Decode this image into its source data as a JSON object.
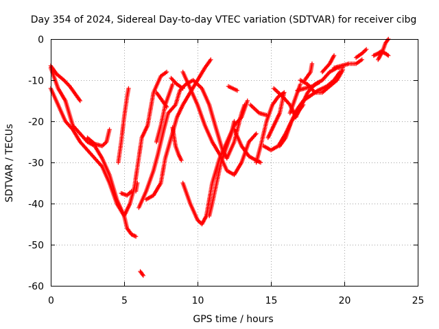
{
  "chart_data": {
    "type": "scatter",
    "title": "Day 354 of 2024, Sidereal Day-to-day VTEC variation (SDTVAR) for receiver cibg",
    "xlabel": "GPS time / hours",
    "ylabel": "SDTVAR / TECUs",
    "xlim": [
      0,
      25
    ],
    "ylim": [
      -60,
      0
    ],
    "xticks": [
      "0",
      "5",
      "10",
      "15",
      "20",
      "25"
    ],
    "yticks": [
      "0",
      "-10",
      "-20",
      "-30",
      "-40",
      "-50",
      "-60"
    ],
    "grid": true,
    "marker": "+",
    "color": "#ff0000",
    "series": [
      {
        "name": "track-1",
        "points": [
          [
            0,
            -7
          ],
          [
            0.5,
            -12
          ],
          [
            1,
            -15
          ],
          [
            1.5,
            -21
          ],
          [
            2,
            -23
          ],
          [
            2.5,
            -25
          ],
          [
            3,
            -26
          ],
          [
            3.5,
            -29
          ],
          [
            4,
            -33
          ],
          [
            4.5,
            -39
          ],
          [
            5,
            -43
          ],
          [
            5.2,
            -46
          ],
          [
            5.5,
            -47.5
          ],
          [
            5.8,
            -48
          ]
        ]
      },
      {
        "name": "track-2",
        "points": [
          [
            0,
            -12
          ],
          [
            0.5,
            -16
          ],
          [
            1,
            -20
          ],
          [
            1.5,
            -22
          ],
          [
            2,
            -25
          ],
          [
            2.5,
            -27
          ],
          [
            3,
            -29
          ],
          [
            3.5,
            -31
          ],
          [
            4,
            -35
          ],
          [
            4.5,
            -40
          ],
          [
            5,
            -43
          ],
          [
            5.4,
            -40
          ],
          [
            5.7,
            -36
          ],
          [
            6.2,
            -24
          ],
          [
            6.6,
            -21
          ],
          [
            7,
            -13
          ],
          [
            7.5,
            -9
          ],
          [
            7.9,
            -8
          ]
        ]
      },
      {
        "name": "track-3",
        "points": [
          [
            0,
            -6.5
          ],
          [
            0.4,
            -8.5
          ],
          [
            0.9,
            -10
          ],
          [
            1.3,
            -11.5
          ],
          [
            1.7,
            -13.5
          ],
          [
            2,
            -15
          ]
        ]
      },
      {
        "name": "track-4",
        "points": [
          [
            2.5,
            -24
          ],
          [
            3,
            -25.5
          ],
          [
            3.5,
            -26
          ],
          [
            3.8,
            -25
          ],
          [
            4,
            -22
          ]
        ]
      },
      {
        "name": "track-5",
        "points": [
          [
            4.6,
            -30
          ],
          [
            4.8,
            -25
          ],
          [
            5,
            -19
          ],
          [
            5.2,
            -14
          ],
          [
            5.3,
            -12
          ]
        ]
      },
      {
        "name": "track-6",
        "points": [
          [
            4.8,
            -37.5
          ],
          [
            5.2,
            -38
          ],
          [
            5.5,
            -37
          ]
        ]
      },
      {
        "name": "track-7",
        "points": [
          [
            5.8,
            -37
          ],
          [
            5.9,
            -35
          ]
        ]
      },
      {
        "name": "track-8",
        "points": [
          [
            6.1,
            -56.5
          ],
          [
            6.3,
            -57.5
          ]
        ]
      },
      {
        "name": "track-9",
        "points": [
          [
            6,
            -41
          ],
          [
            6.5,
            -37
          ],
          [
            7,
            -32
          ],
          [
            7.3,
            -28
          ],
          [
            7.5,
            -25
          ],
          [
            7.7,
            -22
          ],
          [
            8,
            -18
          ],
          [
            8.5,
            -16
          ],
          [
            8.8,
            -12.5
          ],
          [
            9.2,
            -11
          ],
          [
            9.7,
            -10
          ],
          [
            10.3,
            -12
          ],
          [
            10.8,
            -16
          ],
          [
            11.2,
            -21
          ],
          [
            11.7,
            -27
          ],
          [
            12,
            -29
          ],
          [
            12.5,
            -25
          ],
          [
            13,
            -18
          ],
          [
            13.2,
            -16
          ]
        ]
      },
      {
        "name": "track-10",
        "points": [
          [
            6.5,
            -39
          ],
          [
            7,
            -38
          ],
          [
            7.5,
            -35
          ],
          [
            7.8,
            -29
          ],
          [
            8.2,
            -24
          ],
          [
            8.6,
            -19
          ],
          [
            9,
            -16
          ],
          [
            9.5,
            -13
          ],
          [
            10,
            -10
          ],
          [
            10.5,
            -7
          ],
          [
            10.9,
            -5
          ]
        ]
      },
      {
        "name": "track-11",
        "points": [
          [
            7.2,
            -25
          ],
          [
            7.5,
            -21
          ],
          [
            7.8,
            -16
          ],
          [
            8.1,
            -13
          ],
          [
            8.3,
            -11
          ]
        ]
      },
      {
        "name": "track-12",
        "points": [
          [
            7.2,
            -13
          ],
          [
            7.6,
            -15
          ],
          [
            7.9,
            -16.5
          ]
        ]
      },
      {
        "name": "track-13",
        "points": [
          [
            8.3,
            -21.5
          ],
          [
            8.5,
            -26
          ],
          [
            8.7,
            -28
          ],
          [
            8.9,
            -29.5
          ]
        ]
      },
      {
        "name": "track-14",
        "points": [
          [
            8.2,
            -9.5
          ],
          [
            8.6,
            -11
          ],
          [
            9,
            -12
          ]
        ]
      },
      {
        "name": "track-15",
        "points": [
          [
            9,
            -8
          ],
          [
            9.5,
            -12
          ],
          [
            10,
            -16
          ],
          [
            10.5,
            -21
          ],
          [
            11,
            -25
          ],
          [
            11.5,
            -28
          ],
          [
            12,
            -32
          ],
          [
            12.5,
            -33
          ],
          [
            13,
            -30
          ],
          [
            13.5,
            -25
          ],
          [
            14,
            -23
          ]
        ]
      },
      {
        "name": "track-16",
        "points": [
          [
            9,
            -35
          ],
          [
            9.5,
            -40
          ],
          [
            10,
            -44
          ],
          [
            10.3,
            -45
          ],
          [
            10.6,
            -43
          ],
          [
            11,
            -35
          ],
          [
            11.5,
            -29
          ],
          [
            12,
            -25
          ],
          [
            12.5,
            -21
          ],
          [
            13,
            -19
          ],
          [
            13.4,
            -15
          ]
        ]
      },
      {
        "name": "track-17",
        "points": [
          [
            10.8,
            -43
          ],
          [
            11,
            -40
          ],
          [
            11.3,
            -35
          ],
          [
            11.6,
            -30
          ],
          [
            12,
            -26
          ],
          [
            12.3,
            -23
          ],
          [
            12.5,
            -20
          ]
        ]
      },
      {
        "name": "track-18",
        "points": [
          [
            12.1,
            -11.5
          ],
          [
            12.7,
            -12.5
          ]
        ]
      },
      {
        "name": "track-19",
        "points": [
          [
            12.5,
            -22
          ],
          [
            13,
            -26
          ],
          [
            13.5,
            -28.5
          ],
          [
            14,
            -29.5
          ],
          [
            14.3,
            -30
          ]
        ]
      },
      {
        "name": "track-20",
        "points": [
          [
            13.6,
            -16
          ],
          [
            14.2,
            -18
          ],
          [
            14.7,
            -18.5
          ]
        ]
      },
      {
        "name": "track-21",
        "points": [
          [
            14,
            -30
          ],
          [
            14.3,
            -26
          ],
          [
            14.7,
            -20
          ],
          [
            15.1,
            -16
          ],
          [
            15.5,
            -14
          ],
          [
            15.9,
            -13
          ]
        ]
      },
      {
        "name": "track-22",
        "points": [
          [
            14.5,
            -26
          ],
          [
            15,
            -27
          ],
          [
            15.5,
            -26
          ],
          [
            16,
            -23
          ],
          [
            16.4,
            -20
          ],
          [
            16.8,
            -18
          ],
          [
            17.2,
            -16
          ]
        ]
      },
      {
        "name": "track-23",
        "points": [
          [
            14.8,
            -24
          ],
          [
            15.2,
            -21
          ],
          [
            15.6,
            -18
          ],
          [
            15.9,
            -13
          ]
        ]
      },
      {
        "name": "track-24",
        "points": [
          [
            15.2,
            -12
          ],
          [
            15.8,
            -14
          ],
          [
            16.3,
            -16
          ],
          [
            16.7,
            -19
          ],
          [
            17.1,
            -16
          ],
          [
            17.5,
            -13
          ],
          [
            18,
            -11
          ],
          [
            18.5,
            -10
          ],
          [
            19,
            -8
          ],
          [
            19.5,
            -7
          ],
          [
            19.9,
            -7
          ]
        ]
      },
      {
        "name": "track-25",
        "points": [
          [
            15.6,
            -26
          ],
          [
            16,
            -24
          ],
          [
            16.4,
            -20
          ],
          [
            16.8,
            -17
          ],
          [
            17.2,
            -15
          ],
          [
            17.6,
            -14
          ],
          [
            18.2,
            -12.5
          ],
          [
            18.8,
            -11.5
          ],
          [
            19.3,
            -10
          ],
          [
            19.7,
            -8
          ]
        ]
      },
      {
        "name": "track-26",
        "points": [
          [
            16.3,
            -18
          ],
          [
            16.7,
            -14
          ],
          [
            17,
            -11
          ]
        ]
      },
      {
        "name": "track-27",
        "points": [
          [
            16.8,
            -12.5
          ],
          [
            17.3,
            -12
          ],
          [
            17.8,
            -11.5
          ],
          [
            18.3,
            -10.5
          ]
        ]
      },
      {
        "name": "track-28",
        "points": [
          [
            17,
            -10
          ],
          [
            17.5,
            -11
          ],
          [
            18,
            -13
          ],
          [
            18.5,
            -13
          ],
          [
            19,
            -11.5
          ],
          [
            19.5,
            -10
          ],
          [
            19.9,
            -7.5
          ]
        ]
      },
      {
        "name": "track-29",
        "points": [
          [
            17.3,
            -10
          ],
          [
            17.7,
            -8
          ],
          [
            17.8,
            -6
          ]
        ]
      },
      {
        "name": "track-30",
        "points": [
          [
            18.5,
            -8
          ],
          [
            19,
            -6
          ],
          [
            19.3,
            -4
          ]
        ]
      },
      {
        "name": "track-31",
        "points": [
          [
            19.3,
            -7
          ],
          [
            19.8,
            -6.5
          ],
          [
            20.3,
            -6
          ],
          [
            20.8,
            -6
          ],
          [
            21.2,
            -5
          ]
        ]
      },
      {
        "name": "track-32",
        "points": [
          [
            20.8,
            -4.5
          ],
          [
            21.2,
            -3.5
          ],
          [
            21.5,
            -2.5
          ]
        ]
      },
      {
        "name": "track-33",
        "points": [
          [
            22,
            -4
          ],
          [
            22.3,
            -3.5
          ],
          [
            22.5,
            -3
          ],
          [
            22.8,
            -3.5
          ],
          [
            23,
            -4
          ]
        ]
      },
      {
        "name": "track-34",
        "points": [
          [
            22.3,
            -5
          ],
          [
            22.6,
            -3
          ],
          [
            22.8,
            -1
          ],
          [
            23,
            0
          ]
        ]
      }
    ]
  }
}
